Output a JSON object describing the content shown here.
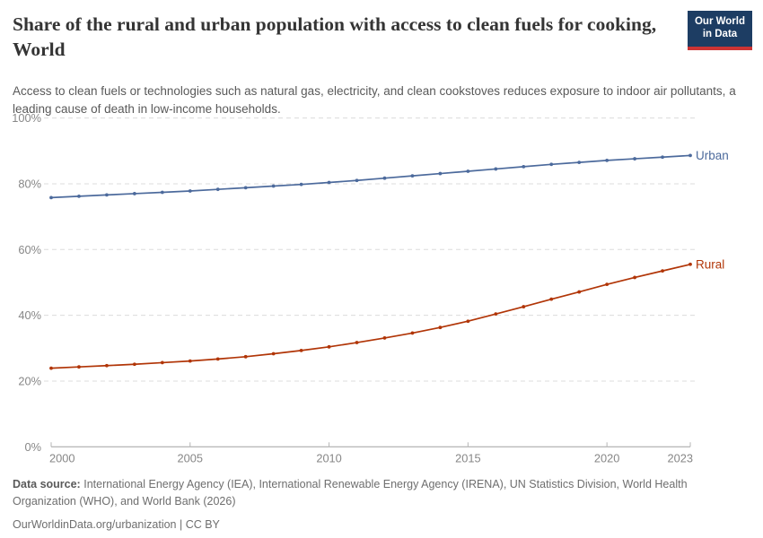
{
  "header": {
    "title": "Share of the rural and urban population with access to clean fuels for cooking, World",
    "subtitle": "Access to clean fuels or technologies such as natural gas, electricity, and clean cookstoves reduces exposure to indoor air pollutants, a leading cause of death in low-income households.",
    "logo": {
      "line1": "Our World",
      "line2": "in Data",
      "bg_color": "#1d3d63",
      "bar_color": "#cc3434"
    }
  },
  "chart_data": {
    "type": "line",
    "title": "Share of the rural and urban population with access to clean fuels for cooking, World",
    "xlabel": "",
    "ylabel": "",
    "ylim": [
      0,
      100
    ],
    "grid": "horizontal-dashed",
    "legend_position": "end-of-line",
    "x": [
      2000,
      2001,
      2002,
      2003,
      2004,
      2005,
      2006,
      2007,
      2008,
      2009,
      2010,
      2011,
      2012,
      2013,
      2014,
      2015,
      2016,
      2017,
      2018,
      2019,
      2020,
      2021,
      2022,
      2023
    ],
    "xticks": [
      2000,
      2005,
      2010,
      2015,
      2020,
      2023
    ],
    "xtick_labels": [
      "2000",
      "2005",
      "2010",
      "2015",
      "2020",
      "2023"
    ],
    "yticks": [
      0,
      20,
      40,
      60,
      80,
      100
    ],
    "ytick_labels": [
      "0%",
      "20%",
      "40%",
      "60%",
      "80%",
      "100%"
    ],
    "series": [
      {
        "name": "Urban",
        "color": "#4C6A9C",
        "values": [
          75.8,
          76.2,
          76.6,
          77.0,
          77.4,
          77.8,
          78.3,
          78.8,
          79.3,
          79.8,
          80.4,
          81.0,
          81.7,
          82.4,
          83.1,
          83.8,
          84.5,
          85.2,
          85.9,
          86.5,
          87.1,
          87.6,
          88.1,
          88.6
        ]
      },
      {
        "name": "Rural",
        "color": "#B13507",
        "values": [
          23.9,
          24.3,
          24.7,
          25.1,
          25.6,
          26.1,
          26.7,
          27.4,
          28.3,
          29.3,
          30.4,
          31.7,
          33.1,
          34.6,
          36.3,
          38.2,
          40.4,
          42.6,
          44.9,
          47.1,
          49.4,
          51.5,
          53.5,
          55.5
        ]
      }
    ],
    "colors": {
      "gridline": "#dcdcdc",
      "axis": "#a1a1a1",
      "tick_label": "#878787"
    }
  },
  "footer": {
    "datasource_label": "Data source:",
    "datasource_text": "International Energy Agency (IEA), International Renewable Energy Agency (IRENA), UN Statistics Division, World Health Organization (WHO), and World Bank (2026)",
    "license_line": "OurWorldinData.org/urbanization | CC BY"
  }
}
